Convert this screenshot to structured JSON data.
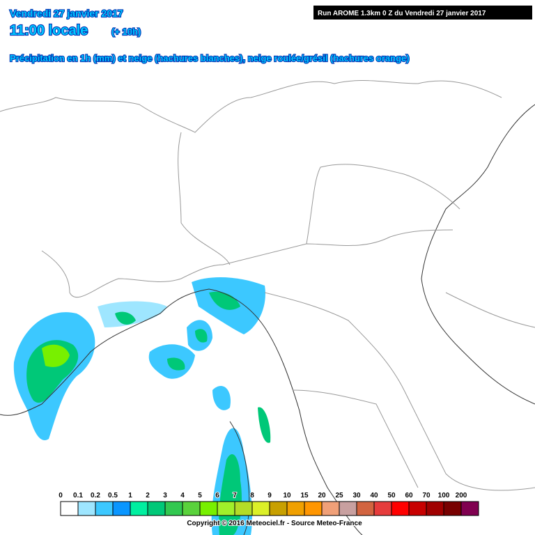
{
  "header": {
    "date": "Vendredi 27 janvier 2017",
    "time": "11:00 locale",
    "lead": "(+ 10h)",
    "description": "Précipitation en 1h (mm) et neige (hachures blanches), neige roulée/grésil (hachures orange)",
    "run": "Run AROME 1.3km 0 Z du Vendredi 27 janvier 2017"
  },
  "legend": {
    "labels": [
      0,
      0.1,
      0.2,
      0.5,
      1,
      2,
      3,
      4,
      5,
      6,
      7,
      8,
      9,
      10,
      15,
      20,
      25,
      30,
      40,
      50,
      60,
      70,
      100,
      200
    ],
    "colors": [
      "#ffffff",
      "#9ee6ff",
      "#3cc8ff",
      "#0a96ff",
      "#00f0a0",
      "#00c878",
      "#32c850",
      "#5ad23c",
      "#78f000",
      "#a0f02a",
      "#b4dc28",
      "#dcf028",
      "#c8a000",
      "#f0a000",
      "#ff9600",
      "#f0a078",
      "#c8a0a0",
      "#d26440",
      "#e63c3c",
      "#ff0000",
      "#c80000",
      "#a00000",
      "#780000",
      "#800050"
    ]
  },
  "footer": {
    "copyright": "Copyright © 2016 Meteociel.fr - Source Meteo-France"
  }
}
